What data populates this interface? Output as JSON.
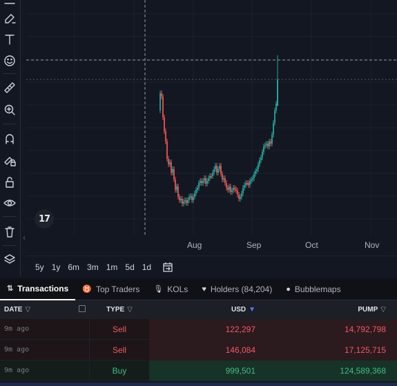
{
  "toolbar": {
    "tools": [
      "trend-line-icon",
      "brush-icon",
      "text-icon",
      "emoji-icon",
      "ruler-icon",
      "zoom-in-icon",
      "magnet-icon",
      "lock-drawing-icon",
      "lock-icon",
      "eye-icon",
      "trash-icon",
      "layers-icon"
    ]
  },
  "chart": {
    "time_axis": [
      "Aug",
      "Sep",
      "Oct",
      "Nov"
    ],
    "logo_text": "17",
    "colors": {
      "up": "#26a69a",
      "down": "#ef5350",
      "grid": "#1e222d",
      "crosshair": "#9598a1"
    }
  },
  "range": {
    "buttons": [
      "5y",
      "1y",
      "6m",
      "3m",
      "1m",
      "5d",
      "1d"
    ]
  },
  "tabs": [
    {
      "icon": "transactions-icon",
      "label": "Transactions",
      "active": true
    },
    {
      "icon": "trophy-icon",
      "label": "Top Traders",
      "active": false
    },
    {
      "icon": "microphone-icon",
      "label": "KOLs",
      "active": false
    },
    {
      "icon": "heart-icon",
      "label": "Holders (84,204)",
      "active": false
    },
    {
      "icon": "bubblemaps-icon",
      "label": "Bubblemaps",
      "active": false
    }
  ],
  "table": {
    "headers": {
      "date": "DATE",
      "type": "TYPE",
      "usd": "USD",
      "pump": "PUMP"
    },
    "rows": [
      {
        "date": "9m ago",
        "type": "Sell",
        "usd": "122,297",
        "pump": "14,792,798"
      },
      {
        "date": "9m ago",
        "type": "Sell",
        "usd": "146,084",
        "pump": "17,125,715"
      },
      {
        "date": "9m ago",
        "type": "Buy",
        "usd": "999,501",
        "pump": "124,589,368"
      }
    ]
  }
}
